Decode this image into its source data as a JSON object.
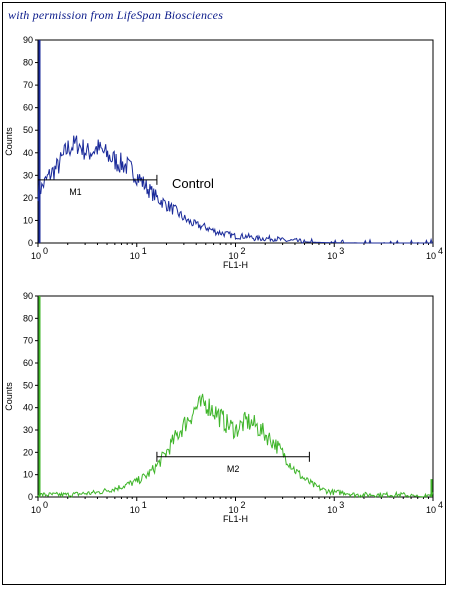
{
  "credit": "with permission from LifeSpan Biosciences",
  "chart_data": [
    {
      "type": "histogram",
      "ylabel": "Counts",
      "xlabel": "FL1-H",
      "xscale": "log",
      "xlim": [
        1,
        10000
      ],
      "ylim": [
        0,
        90
      ],
      "yticks": [
        "0",
        "10",
        "20",
        "30",
        "40",
        "50",
        "60",
        "70",
        "80",
        "90"
      ],
      "xticks": [
        {
          "base": "10",
          "exp": "0"
        },
        {
          "base": "10",
          "exp": "1"
        },
        {
          "base": "10",
          "exp": "2"
        },
        {
          "base": "10",
          "exp": "3"
        },
        {
          "base": "10",
          "exp": "4"
        }
      ],
      "color": "#1a2a9a",
      "series": [
        {
          "x": [
            1.0,
            1.3,
            1.6,
            2.0,
            2.5,
            3.2,
            4.0,
            5.0,
            6.3,
            8.0,
            10,
            13,
            16,
            20,
            25,
            32,
            40,
            50,
            63,
            80,
            100,
            130,
            160,
            200,
            250,
            320,
            400,
            500,
            630,
            800,
            1000,
            2000,
            5000,
            10000
          ],
          "values": [
            22,
            30,
            34,
            42,
            44,
            40,
            42,
            39,
            36,
            34,
            30,
            24,
            20,
            17,
            14,
            10,
            8,
            7,
            5,
            4,
            3,
            3,
            2,
            2,
            2,
            1,
            1,
            0.5,
            0.3,
            0.2,
            0.1,
            0,
            0,
            0
          ]
        }
      ],
      "gate": {
        "name": "M1",
        "x_range": [
          1.0,
          16
        ],
        "y": 28
      },
      "annotation": "Control"
    },
    {
      "type": "histogram",
      "ylabel": "Counts",
      "xlabel": "FL1-H",
      "xscale": "log",
      "xlim": [
        1,
        10000
      ],
      "ylim": [
        0,
        90
      ],
      "yticks": [
        "0",
        "10",
        "20",
        "30",
        "40",
        "50",
        "60",
        "70",
        "80",
        "90"
      ],
      "xticks": [
        {
          "base": "10",
          "exp": "0"
        },
        {
          "base": "10",
          "exp": "1"
        },
        {
          "base": "10",
          "exp": "2"
        },
        {
          "base": "10",
          "exp": "3"
        },
        {
          "base": "10",
          "exp": "4"
        }
      ],
      "color": "#3fb52a",
      "series": [
        {
          "x": [
            1.0,
            2.0,
            4.0,
            6.3,
            10,
            13,
            16,
            20,
            25,
            32,
            40,
            50,
            63,
            80,
            100,
            130,
            160,
            200,
            250,
            320,
            400,
            500,
            630,
            800,
            1000,
            1300,
            1600,
            2000,
            3000,
            5000,
            8000,
            10000
          ],
          "values": [
            1,
            1,
            2,
            4,
            7,
            10,
            14,
            20,
            27,
            34,
            40,
            42,
            38,
            33,
            30,
            34,
            32,
            28,
            24,
            18,
            12,
            8,
            5,
            3,
            2,
            2,
            1,
            1,
            1,
            1,
            0,
            2
          ]
        }
      ],
      "gate": {
        "name": "M2",
        "x_range": [
          16,
          560
        ],
        "y": 18
      }
    }
  ]
}
